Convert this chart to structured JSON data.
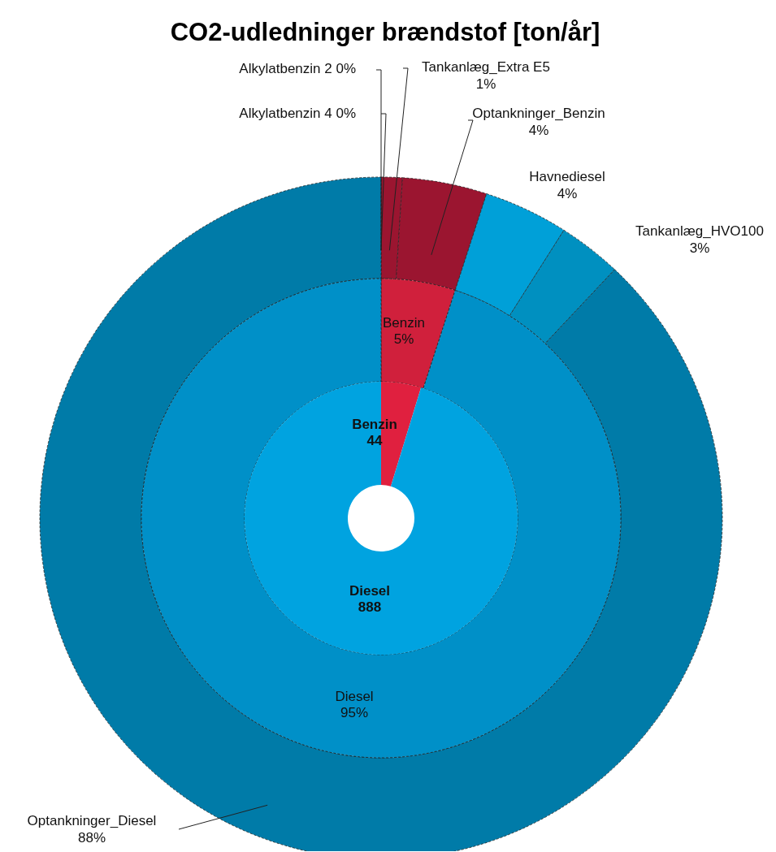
{
  "chart_data": [
    {
      "type": "donut",
      "title": "CO2-udledninger brændstof [ton/år]",
      "categories": [
        "Benzin",
        "Diesel"
      ],
      "values": [
        44,
        888
      ],
      "colors": [
        "#e0203f",
        "#00a3e0"
      ],
      "data_labels": true
    },
    {
      "type": "donut",
      "categories": [
        "Benzin",
        "Diesel"
      ],
      "values": [
        5,
        95
      ],
      "colors": [
        "#d0203c",
        "#0090c8"
      ],
      "value_labels": [
        "5%",
        "95%"
      ]
    },
    {
      "type": "donut",
      "categories": [
        "Alkylatbenzin 4",
        "Alkylatbenzin 2",
        "Tankanlæg_Extra E5",
        "Optankninger_Benzin",
        "Havnediesel",
        "Tankanlæg_HVO100",
        "Optankninger_Diesel"
      ],
      "values": [
        0,
        0,
        1,
        4,
        4,
        3,
        88
      ],
      "colors": [
        "#9b1530",
        "#9b1530",
        "#9b1530",
        "#9b1530",
        "#00a0d8",
        "#0090c0",
        "#007ba8"
      ],
      "value_labels": [
        "0%",
        "0%",
        "1%",
        "4%",
        "4%",
        "3%",
        "88%"
      ]
    }
  ]
}
